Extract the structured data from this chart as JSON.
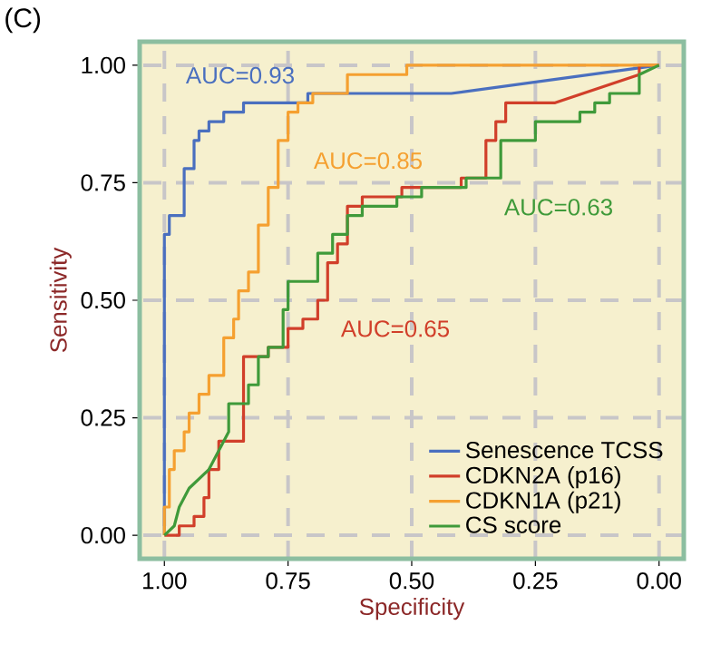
{
  "chart_data": {
    "type": "line",
    "title": "(C)",
    "xlabel": "Specificity",
    "ylabel": "Sensitivity",
    "xlim": [
      1.05,
      -0.05
    ],
    "ylim": [
      -0.05,
      1.05
    ],
    "xticks": [
      {
        "value": 1,
        "label": "1.00"
      },
      {
        "value": 0.75,
        "label": "0.75"
      },
      {
        "value": 0.5,
        "label": "0.50"
      },
      {
        "value": 0.25,
        "label": "0.25"
      },
      {
        "value": 0,
        "label": "0.00"
      }
    ],
    "yticks": [
      {
        "value": 0,
        "label": "0.00"
      },
      {
        "value": 0.25,
        "label": "0.25"
      },
      {
        "value": 0.5,
        "label": "0.50"
      },
      {
        "value": 0.75,
        "label": "0.75"
      },
      {
        "value": 1,
        "label": "1.00"
      }
    ],
    "grid": true,
    "legend": "bottom right",
    "marker": "none",
    "line_style": "solid",
    "series": [
      {
        "name": "Senescence TCSS",
        "color": "#4a6fbf",
        "x": [
          1.0,
          1.0,
          0.99,
          0.99,
          0.96,
          0.96,
          0.94,
          0.94,
          0.93,
          0.93,
          0.91,
          0.91,
          0.88,
          0.88,
          0.84,
          0.84,
          0.71,
          0.71,
          0.42,
          0.0
        ],
        "values": [
          0.0,
          0.64,
          0.64,
          0.68,
          0.68,
          0.78,
          0.78,
          0.84,
          0.84,
          0.86,
          0.86,
          0.88,
          0.88,
          0.9,
          0.9,
          0.92,
          0.92,
          0.94,
          0.94,
          1.0
        ]
      },
      {
        "name": "CDKN2A (p16)",
        "color": "#d13f2a",
        "x": [
          1.0,
          0.97,
          0.97,
          0.94,
          0.94,
          0.92,
          0.92,
          0.91,
          0.91,
          0.89,
          0.89,
          0.84,
          0.84,
          0.79,
          0.79,
          0.75,
          0.75,
          0.72,
          0.72,
          0.69,
          0.69,
          0.67,
          0.67,
          0.65,
          0.65,
          0.63,
          0.63,
          0.6,
          0.6,
          0.52,
          0.52,
          0.4,
          0.4,
          0.35,
          0.35,
          0.33,
          0.33,
          0.31,
          0.31,
          0.21,
          0.04,
          0.04,
          0.0
        ],
        "values": [
          0.0,
          0.0,
          0.02,
          0.02,
          0.04,
          0.04,
          0.08,
          0.08,
          0.14,
          0.14,
          0.2,
          0.2,
          0.38,
          0.38,
          0.4,
          0.4,
          0.44,
          0.44,
          0.46,
          0.46,
          0.5,
          0.5,
          0.58,
          0.58,
          0.62,
          0.62,
          0.7,
          0.7,
          0.72,
          0.72,
          0.74,
          0.74,
          0.76,
          0.76,
          0.84,
          0.84,
          0.88,
          0.88,
          0.92,
          0.92,
          0.98,
          1.0,
          1.0
        ]
      },
      {
        "name": "CDKN1A (p21)",
        "color": "#f5a030",
        "x": [
          1.0,
          1.0,
          0.99,
          0.99,
          0.98,
          0.98,
          0.96,
          0.96,
          0.95,
          0.95,
          0.93,
          0.93,
          0.91,
          0.91,
          0.88,
          0.88,
          0.86,
          0.86,
          0.85,
          0.85,
          0.83,
          0.83,
          0.81,
          0.81,
          0.79,
          0.79,
          0.77,
          0.77,
          0.75,
          0.75,
          0.73,
          0.73,
          0.7,
          0.7,
          0.63,
          0.63,
          0.51,
          0.51,
          0.0
        ],
        "values": [
          0.0,
          0.06,
          0.06,
          0.14,
          0.14,
          0.18,
          0.18,
          0.22,
          0.22,
          0.26,
          0.26,
          0.3,
          0.3,
          0.34,
          0.34,
          0.42,
          0.42,
          0.46,
          0.46,
          0.52,
          0.52,
          0.56,
          0.56,
          0.66,
          0.66,
          0.74,
          0.74,
          0.84,
          0.84,
          0.9,
          0.9,
          0.92,
          0.92,
          0.94,
          0.94,
          0.98,
          0.98,
          1.0,
          1.0
        ]
      },
      {
        "name": "CS score",
        "color": "#3f9a3a",
        "x": [
          1.0,
          0.98,
          0.97,
          0.95,
          0.91,
          0.89,
          0.87,
          0.87,
          0.83,
          0.83,
          0.81,
          0.81,
          0.79,
          0.79,
          0.76,
          0.76,
          0.75,
          0.75,
          0.69,
          0.69,
          0.66,
          0.66,
          0.63,
          0.63,
          0.6,
          0.6,
          0.53,
          0.53,
          0.48,
          0.48,
          0.39,
          0.39,
          0.32,
          0.32,
          0.25,
          0.25,
          0.16,
          0.16,
          0.13,
          0.13,
          0.1,
          0.1,
          0.04,
          0.04,
          0.0
        ],
        "values": [
          0.0,
          0.02,
          0.06,
          0.1,
          0.14,
          0.18,
          0.22,
          0.28,
          0.28,
          0.32,
          0.32,
          0.38,
          0.38,
          0.4,
          0.4,
          0.48,
          0.48,
          0.54,
          0.54,
          0.6,
          0.6,
          0.64,
          0.64,
          0.68,
          0.68,
          0.7,
          0.7,
          0.72,
          0.72,
          0.74,
          0.74,
          0.76,
          0.76,
          0.84,
          0.84,
          0.88,
          0.88,
          0.9,
          0.9,
          0.92,
          0.92,
          0.94,
          0.94,
          0.98,
          1.0
        ]
      }
    ],
    "annotations": [
      "AUC=0.93",
      "AUC=0.65",
      "AUC=0.85",
      "AUC=0.63"
    ]
  }
}
